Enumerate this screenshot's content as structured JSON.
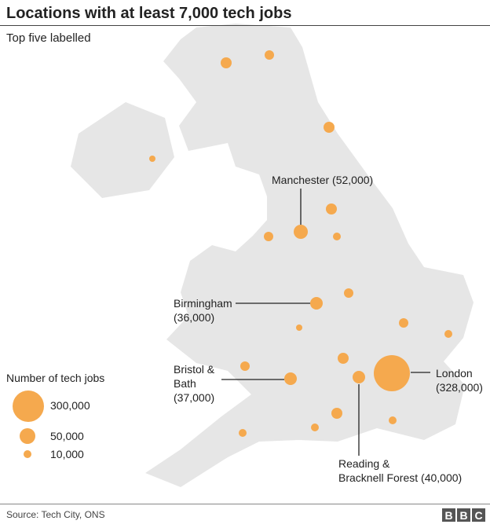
{
  "title": "Locations with at least 7,000 tech jobs",
  "subtitle": "Top five labelled",
  "colors": {
    "bubble": "#f5a94e",
    "land": "#e6e6e6",
    "border": "#ffffff",
    "text": "#222222"
  },
  "labels": [
    {
      "name": "Manchester",
      "value": 52000,
      "line1": "Manchester (52,000)",
      "line2": ""
    },
    {
      "name": "Birmingham",
      "value": 36000,
      "line1": "Birmingham",
      "line2": "(36,000)"
    },
    {
      "name": "Bristol & Bath",
      "value": 37000,
      "line1": "Bristol &",
      "line2": "Bath",
      "line3": "(37,000)"
    },
    {
      "name": "London",
      "value": 328000,
      "line1": "London",
      "line2": "(328,000)"
    },
    {
      "name": "Reading & Bracknell Forest",
      "value": 40000,
      "line1": "Reading &",
      "line2": "Bracknell Forest (40,000)"
    }
  ],
  "legend": {
    "title": "Number of tech jobs",
    "items": [
      {
        "value": 300000,
        "label": "300,000"
      },
      {
        "value": 50000,
        "label": "50,000"
      },
      {
        "value": 10000,
        "label": "10,000"
      }
    ]
  },
  "source": "Source: Tech City, ONS",
  "logo": "BBC"
}
